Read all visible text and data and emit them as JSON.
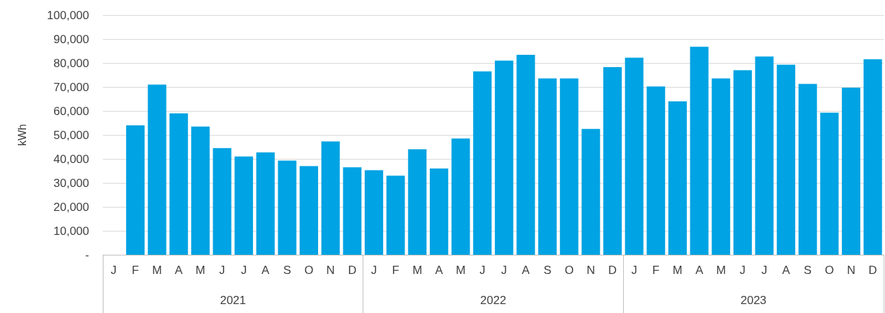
{
  "chart_data": {
    "type": "bar",
    "ylabel": "kWh",
    "categories": [
      "J",
      "F",
      "M",
      "A",
      "M",
      "J",
      "J",
      "A",
      "S",
      "O",
      "N",
      "D",
      "J",
      "F",
      "M",
      "A",
      "M",
      "J",
      "J",
      "A",
      "S",
      "O",
      "N",
      "D",
      "J",
      "F",
      "M",
      "A",
      "M",
      "J",
      "J",
      "A",
      "S",
      "O",
      "N",
      "D"
    ],
    "annotations": [
      "2021",
      "2022",
      "2023"
    ],
    "values": [
      null,
      54000,
      71000,
      59000,
      53500,
      44500,
      41000,
      42700,
      39300,
      37000,
      47300,
      36500,
      35300,
      33000,
      44000,
      36000,
      48500,
      76500,
      81000,
      83400,
      73600,
      73600,
      52500,
      78300,
      82200,
      70200,
      64000,
      86800,
      73600,
      77000,
      82700,
      79300,
      71300,
      59300,
      69700,
      81600
    ],
    "color": "#00a3e3",
    "ylim": [
      0,
      100000
    ],
    "yticks": [
      {
        "value": 0,
        "label": "-"
      },
      {
        "value": 10000,
        "label": "10,000"
      },
      {
        "value": 20000,
        "label": "20,000"
      },
      {
        "value": 30000,
        "label": "30,000"
      },
      {
        "value": 40000,
        "label": "40,000"
      },
      {
        "value": 50000,
        "label": "50,000"
      },
      {
        "value": 60000,
        "label": "60,000"
      },
      {
        "value": 70000,
        "label": "70,000"
      },
      {
        "value": 80000,
        "label": "80,000"
      },
      {
        "value": 90000,
        "label": "90,000"
      },
      {
        "value": 100000,
        "label": "100,000"
      }
    ],
    "grid": true
  }
}
